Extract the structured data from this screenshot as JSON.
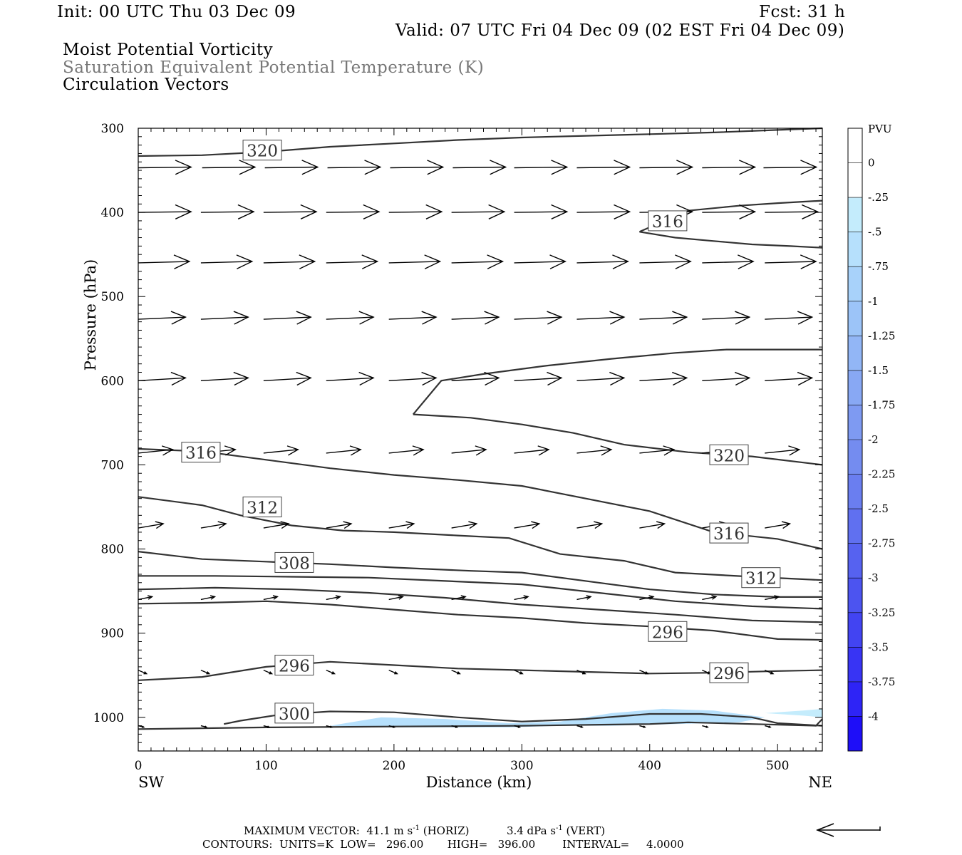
{
  "header": {
    "init": "Init: 00 UTC Thu 03 Dec 09",
    "fcst": "Fcst:   31 h",
    "valid": "Valid: 07 UTC Fri 04 Dec 09 (02 EST Fri 04 Dec 09)",
    "field1": "Moist Potential Vorticity",
    "field2": "Saturation Equivalent Potential Temperature (K)",
    "field3": "Circulation Vectors"
  },
  "footer": {
    "max_vector_label": "MAXIMUM VECTOR:  41.1 m s",
    "horiz_label": " (HORIZ)",
    "vert_value": "3.4 dPa s",
    "vert_label": " (VERT)",
    "exp": "-1",
    "contours": "CONTOURS:  UNITS=K  LOW=   296.00       HIGH=   396.00        INTERVAL=     4.0000"
  },
  "chart_data": {
    "type": "cross-section",
    "xlabel": "Distance (km)",
    "ylabel": "Pressure (hPa)",
    "xlim": [
      0,
      535
    ],
    "ylim": [
      1040,
      300
    ],
    "x_ticks": [
      "0",
      "100",
      "200",
      "300",
      "400",
      "500"
    ],
    "y_ticks": [
      "300",
      "400",
      "500",
      "600",
      "700",
      "800",
      "900",
      "1000"
    ],
    "x_end_labels": {
      "left": "SW",
      "right": "NE"
    },
    "colorbar": {
      "unit": "PVU",
      "labels": [
        "0",
        "-.25",
        "-.5",
        "-.75",
        "-1",
        "-1.25",
        "-1.5",
        "-1.75",
        "-2",
        "-2.25",
        "-2.5",
        "-2.75",
        "-3",
        "-3.25",
        "-3.5",
        "-3.75",
        "-4"
      ],
      "colors": [
        "#ffffff",
        "#c4ecfc",
        "#b6e0fc",
        "#a8d2fa",
        "#9cc4f8",
        "#92b6f6",
        "#88a8f4",
        "#7e9af2",
        "#748cf0",
        "#6a7ef0",
        "#6070f0",
        "#5662f0",
        "#4c54f0",
        "#4244f2",
        "#3834f4",
        "#2e24f6",
        "#1e0ef8"
      ]
    },
    "contours": [
      {
        "label": "320",
        "points": [
          [
            0,
            333
          ],
          [
            50,
            332
          ],
          [
            100,
            328
          ],
          [
            150,
            322
          ],
          [
            200,
            318
          ],
          [
            250,
            314
          ],
          [
            300,
            311
          ],
          [
            350,
            309
          ],
          [
            400,
            307
          ],
          [
            450,
            305
          ],
          [
            500,
            302
          ],
          [
            535,
            300
          ]
        ]
      },
      {
        "label": "316",
        "points": [
          [
            392,
            423
          ],
          [
            430,
            398
          ],
          [
            470,
            392
          ],
          [
            500,
            389
          ],
          [
            535,
            386
          ]
        ]
      },
      {
        "label": "",
        "points": [
          [
            392,
            423
          ],
          [
            420,
            430
          ],
          [
            450,
            434
          ],
          [
            480,
            438
          ],
          [
            510,
            440
          ],
          [
            535,
            442
          ]
        ]
      },
      {
        "label": "",
        "points": [
          [
            215,
            640
          ],
          [
            237,
            600
          ],
          [
            270,
            592
          ],
          [
            320,
            582
          ],
          [
            370,
            574
          ],
          [
            420,
            567
          ],
          [
            460,
            563
          ],
          [
            535,
            563
          ]
        ]
      },
      {
        "label": "",
        "points": [
          [
            215,
            640
          ],
          [
            260,
            644
          ],
          [
            300,
            652
          ],
          [
            340,
            662
          ],
          [
            380,
            676
          ],
          [
            430,
            685
          ],
          [
            480,
            690
          ],
          [
            535,
            700
          ]
        ]
      },
      {
        "label": "316",
        "points": [
          [
            0,
            681
          ],
          [
            50,
            684
          ],
          [
            100,
            694
          ],
          [
            150,
            704
          ],
          [
            200,
            712
          ],
          [
            250,
            718
          ],
          [
            300,
            725
          ],
          [
            350,
            740
          ],
          [
            400,
            755
          ],
          [
            450,
            780
          ],
          [
            500,
            788
          ],
          [
            535,
            800
          ]
        ]
      },
      {
        "label": "312",
        "points": [
          [
            0,
            738
          ],
          [
            50,
            748
          ],
          [
            80,
            760
          ],
          [
            120,
            772
          ],
          [
            160,
            778
          ],
          [
            200,
            780
          ],
          [
            250,
            784
          ],
          [
            290,
            787
          ],
          [
            330,
            806
          ],
          [
            380,
            814
          ],
          [
            420,
            828
          ],
          [
            480,
            833
          ],
          [
            535,
            837
          ]
        ]
      },
      {
        "label": "308",
        "points": [
          [
            0,
            803
          ],
          [
            50,
            812
          ],
          [
            100,
            815
          ],
          [
            150,
            818
          ],
          [
            200,
            822
          ],
          [
            260,
            826
          ],
          [
            300,
            828
          ],
          [
            360,
            840
          ],
          [
            400,
            848
          ],
          [
            450,
            854
          ],
          [
            500,
            857
          ],
          [
            535,
            857
          ]
        ]
      },
      {
        "label": "",
        "points": [
          [
            0,
            832
          ],
          [
            60,
            832
          ],
          [
            120,
            833
          ],
          [
            180,
            834
          ],
          [
            240,
            838
          ],
          [
            300,
            842
          ],
          [
            360,
            852
          ],
          [
            420,
            862
          ],
          [
            480,
            868
          ],
          [
            535,
            871
          ]
        ]
      },
      {
        "label": "",
        "points": [
          [
            0,
            848
          ],
          [
            60,
            846
          ],
          [
            120,
            848
          ],
          [
            180,
            852
          ],
          [
            240,
            858
          ],
          [
            300,
            866
          ],
          [
            360,
            872
          ],
          [
            420,
            878
          ],
          [
            480,
            885
          ],
          [
            535,
            887
          ]
        ]
      },
      {
        "label": "296",
        "points": [
          [
            0,
            865
          ],
          [
            50,
            864
          ],
          [
            100,
            862
          ],
          [
            150,
            866
          ],
          [
            200,
            872
          ],
          [
            250,
            878
          ],
          [
            300,
            882
          ],
          [
            350,
            888
          ],
          [
            400,
            892
          ],
          [
            450,
            897
          ],
          [
            500,
            907
          ],
          [
            535,
            908
          ]
        ]
      },
      {
        "label": "296",
        "points": [
          [
            0,
            956
          ],
          [
            50,
            952
          ],
          [
            100,
            940
          ],
          [
            150,
            934
          ],
          [
            200,
            938
          ],
          [
            250,
            942
          ],
          [
            300,
            944
          ],
          [
            350,
            946
          ],
          [
            400,
            948
          ],
          [
            450,
            947
          ],
          [
            500,
            945
          ],
          [
            535,
            944
          ]
        ]
      },
      {
        "label": "300",
        "points": [
          [
            67,
            1008
          ],
          [
            80,
            1004
          ],
          [
            110,
            997
          ],
          [
            150,
            993
          ],
          [
            200,
            994
          ],
          [
            250,
            1000
          ],
          [
            300,
            1005
          ],
          [
            350,
            1002
          ],
          [
            400,
            996
          ],
          [
            440,
            996
          ],
          [
            480,
            1000
          ],
          [
            500,
            1007
          ],
          [
            535,
            1010
          ]
        ]
      },
      {
        "label": "",
        "points": [
          [
            0,
            1014
          ],
          [
            100,
            1012
          ],
          [
            200,
            1011
          ],
          [
            300,
            1010
          ],
          [
            400,
            1008
          ],
          [
            430,
            1006
          ],
          [
            480,
            1008
          ],
          [
            530,
            1010
          ],
          [
            535,
            1002
          ]
        ]
      }
    ],
    "contour_labels": [
      {
        "text": "320",
        "x": 97,
        "p": 326
      },
      {
        "text": "316",
        "x": 414,
        "p": 410
      },
      {
        "text": "316",
        "x": 49,
        "p": 685
      },
      {
        "text": "320",
        "x": 462,
        "p": 688
      },
      {
        "text": "312",
        "x": 97,
        "p": 750
      },
      {
        "text": "316",
        "x": 462,
        "p": 781
      },
      {
        "text": "308",
        "x": 122,
        "p": 816
      },
      {
        "text": "312",
        "x": 487,
        "p": 834
      },
      {
        "text": "296",
        "x": 414,
        "p": 898
      },
      {
        "text": "296",
        "x": 122,
        "p": 938
      },
      {
        "text": "296",
        "x": 462,
        "p": 947
      },
      {
        "text": "300",
        "x": 122,
        "p": 995
      }
    ],
    "pv_regions": [
      {
        "value": -0.5,
        "points": [
          [
            150,
            1010
          ],
          [
            190,
            1000
          ],
          [
            240,
            1002
          ],
          [
            290,
            1007
          ],
          [
            330,
            1005
          ],
          [
            370,
            995
          ],
          [
            410,
            990
          ],
          [
            450,
            992
          ],
          [
            490,
            1000
          ],
          [
            470,
            1006
          ],
          [
            420,
            1008
          ],
          [
            370,
            1010
          ],
          [
            330,
            1010
          ],
          [
            290,
            1012
          ],
          [
            240,
            1012
          ],
          [
            190,
            1012
          ]
        ]
      },
      {
        "value": -0.25,
        "points": [
          [
            490,
            995
          ],
          [
            520,
            992
          ],
          [
            535,
            990
          ],
          [
            535,
            1000
          ],
          [
            520,
            998
          ]
        ]
      }
    ],
    "vectors": [
      {
        "p": 347,
        "x": [
          0,
          50,
          99,
          148,
          197,
          246,
          294,
          343,
          392,
          441,
          489,
          538
        ],
        "dx": 0.95,
        "dp": -1
      },
      {
        "p": 400,
        "x": [
          0,
          49,
          98,
          147,
          196,
          245,
          294,
          343,
          392,
          441,
          490,
          539
        ],
        "dx": 0.95,
        "dp": -1
      },
      {
        "p": 460,
        "x": [
          0,
          49,
          98,
          147,
          196,
          245,
          294,
          343,
          392,
          441,
          490,
          539
        ],
        "dx": 0.92,
        "dp": -2
      },
      {
        "p": 527,
        "x": [
          0,
          49,
          98,
          147,
          196,
          245,
          294,
          343,
          392,
          441,
          490,
          539
        ],
        "dx": 0.85,
        "dp": -3
      },
      {
        "p": 600,
        "x": [
          0,
          49,
          98,
          147,
          196,
          245,
          294,
          343,
          392,
          441,
          490,
          539
        ],
        "dx": 0.85,
        "dp": -4
      },
      {
        "p": 686,
        "x": [
          0,
          49,
          98,
          147,
          196,
          245,
          294,
          343,
          392,
          441,
          490,
          539
        ],
        "dx": 0.62,
        "dp": -5
      },
      {
        "p": 775,
        "x": [
          0,
          49,
          98,
          147,
          196,
          245,
          294,
          343,
          392,
          441,
          490,
          539
        ],
        "dx": 0.45,
        "dp": -6
      },
      {
        "p": 860,
        "x": [
          0,
          49,
          98,
          147,
          196,
          245,
          294,
          343,
          392,
          441,
          490,
          539
        ],
        "dx": 0.25,
        "dp": -4
      },
      {
        "p": 944,
        "x": [
          0,
          49,
          98,
          147,
          196,
          245,
          294,
          343,
          392,
          441,
          490,
          539
        ],
        "dx": 0.15,
        "dp": 5
      },
      {
        "p": 1010,
        "x": [
          0,
          49,
          98,
          147,
          196,
          245,
          294,
          343,
          392,
          441,
          490,
          539
        ],
        "dx": 0.1,
        "dp": 2
      }
    ]
  }
}
